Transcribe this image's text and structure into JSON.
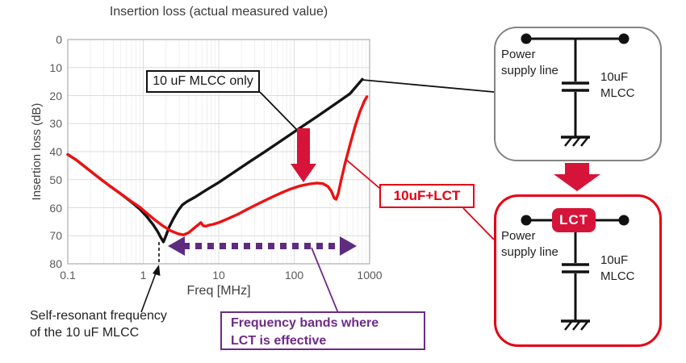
{
  "chart": {
    "title": "Insertion loss (actual measured value)",
    "x_axis": {
      "label": "Freq [MHz]",
      "ticks": [
        "0.1",
        "1",
        "10",
        "100",
        "1000"
      ]
    },
    "y_axis": {
      "label": "Insertion loss (dB)",
      "ticks": [
        "0",
        "10",
        "20",
        "30",
        "40",
        "50",
        "60",
        "70",
        "80"
      ]
    },
    "series_labels": {
      "mlcc_only": "10 uF MLCC only",
      "mlcc_lct": "10uF+LCT"
    }
  },
  "chart_data": {
    "type": "line",
    "title": "Insertion loss (actual measured value)",
    "xlabel": "Freq [MHz]",
    "ylabel": "Insertion loss (dB)",
    "x_scale": "log",
    "xlim": [
      0.1,
      1000
    ],
    "ylim": [
      0,
      80
    ],
    "y_axis_inverted": true,
    "x_ticks": [
      0.1,
      1,
      10,
      100,
      1000
    ],
    "y_ticks": [
      0,
      10,
      20,
      30,
      40,
      50,
      60,
      70,
      80
    ],
    "grid": true,
    "series": [
      {
        "name": "10 uF MLCC only",
        "color": "#141414",
        "points": [
          [
            0.1,
            41
          ],
          [
            0.13,
            43
          ],
          [
            0.18,
            46
          ],
          [
            0.25,
            49
          ],
          [
            0.35,
            52
          ],
          [
            0.5,
            55
          ],
          [
            0.7,
            58
          ],
          [
            0.9,
            60.5
          ],
          [
            1.1,
            63
          ],
          [
            1.35,
            66
          ],
          [
            1.55,
            68.5
          ],
          [
            1.7,
            70.5
          ],
          [
            1.85,
            72.2
          ],
          [
            2.0,
            70
          ],
          [
            2.2,
            67
          ],
          [
            2.5,
            64
          ],
          [
            2.9,
            61
          ],
          [
            3.3,
            59
          ],
          [
            3.8,
            57.8
          ],
          [
            5,
            56
          ],
          [
            7,
            53.5
          ],
          [
            10,
            51
          ],
          [
            15,
            47.8
          ],
          [
            25,
            43.8
          ],
          [
            40,
            40.2
          ],
          [
            70,
            35.8
          ],
          [
            120,
            31.5
          ],
          [
            200,
            27.5
          ],
          [
            350,
            23
          ],
          [
            550,
            19.3
          ],
          [
            800,
            14.2
          ]
        ]
      },
      {
        "name": "10uF+LCT",
        "color": "#ee1111",
        "points": [
          [
            0.1,
            41
          ],
          [
            0.13,
            43
          ],
          [
            0.18,
            46
          ],
          [
            0.25,
            49
          ],
          [
            0.35,
            52
          ],
          [
            0.5,
            55
          ],
          [
            0.7,
            57.8
          ],
          [
            0.9,
            59.8
          ],
          [
            1.1,
            61.8
          ],
          [
            1.4,
            64.2
          ],
          [
            1.8,
            66.4
          ],
          [
            2.3,
            68.2
          ],
          [
            2.9,
            69.3
          ],
          [
            3.4,
            69.7
          ],
          [
            4.0,
            68.9
          ],
          [
            4.7,
            67.3
          ],
          [
            5.3,
            66.2
          ],
          [
            5.8,
            65.3
          ],
          [
            6.2,
            66.4
          ],
          [
            6.8,
            66.6
          ],
          [
            7.5,
            66.2
          ],
          [
            8.5,
            65.9
          ],
          [
            10,
            65.3
          ],
          [
            13,
            64
          ],
          [
            18,
            62.3
          ],
          [
            25,
            60.3
          ],
          [
            35,
            58.3
          ],
          [
            50,
            56.3
          ],
          [
            70,
            54.5
          ],
          [
            90,
            53.3
          ],
          [
            120,
            52.2
          ],
          [
            160,
            51.5
          ],
          [
            200,
            51.2
          ],
          [
            240,
            51.4
          ],
          [
            280,
            52.4
          ],
          [
            310,
            54
          ],
          [
            340,
            56.6
          ],
          [
            360,
            57
          ],
          [
            385,
            54.8
          ],
          [
            420,
            50
          ],
          [
            470,
            44.5
          ],
          [
            550,
            37.5
          ],
          [
            650,
            30.5
          ],
          [
            750,
            25.5
          ],
          [
            850,
            22
          ],
          [
            920,
            20.4
          ]
        ]
      }
    ]
  },
  "annotations": {
    "self_resonant_line1": "Self-resonant frequency",
    "self_resonant_line2": "of the 10 uF MLCC",
    "freq_band_line1": "Frequency bands where",
    "freq_band_line2": "LCT is effective"
  },
  "circuit_top": {
    "power_line1": "Power",
    "power_line2": "supply line",
    "cap_line1": "10uF",
    "cap_line2": "MLCC"
  },
  "circuit_bottom": {
    "power_line1": "Power",
    "power_line2": "supply line",
    "lct_badge": "LCT",
    "cap_line1": "10uF",
    "cap_line2": "MLCC"
  },
  "colors": {
    "curve_black": "#141414",
    "curve_red": "#ee1111",
    "accent_red": "#e60012",
    "crimson_arrow": "#d6143a",
    "purple": "#5e2b7e",
    "purple_text": "#6e2a87",
    "grid_major": "#dcdcdc",
    "grid_minor": "#f0f0f0",
    "axis_text": "#595959",
    "gray_border": "#848484"
  }
}
